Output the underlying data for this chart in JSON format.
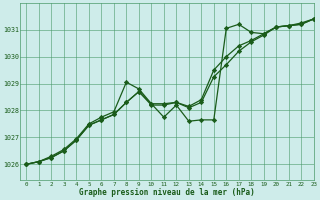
{
  "title": "Graphe pression niveau de la mer (hPa)",
  "bg_color": "#ceecea",
  "grid_color": "#4a9a6a",
  "line_color": "#1a5c1a",
  "marker_color": "#1a5c1a",
  "xlim": [
    -0.5,
    23
  ],
  "ylim": [
    1025.4,
    1032.0
  ],
  "yticks": [
    1026,
    1027,
    1028,
    1029,
    1030,
    1031
  ],
  "xticks": [
    0,
    1,
    2,
    3,
    4,
    5,
    6,
    7,
    8,
    9,
    10,
    11,
    12,
    13,
    14,
    15,
    16,
    17,
    18,
    19,
    20,
    21,
    22,
    23
  ],
  "series1_x": [
    0,
    1,
    2,
    3,
    4,
    5,
    6,
    7,
    8,
    9,
    10,
    11,
    12,
    13,
    14,
    15,
    16,
    17,
    18,
    19,
    20,
    21,
    22,
    23
  ],
  "series1_y": [
    1026.0,
    1026.1,
    1026.3,
    1026.55,
    1026.95,
    1027.5,
    1027.75,
    1027.95,
    1029.05,
    1028.8,
    1028.25,
    1027.75,
    1028.2,
    1027.6,
    1027.65,
    1027.65,
    1031.05,
    1031.2,
    1030.9,
    1030.85,
    1031.1,
    1031.15,
    1031.25,
    1031.4
  ],
  "series2_x": [
    0,
    1,
    2,
    3,
    4,
    5,
    6,
    7,
    8,
    9,
    10,
    11,
    12,
    13,
    14,
    15,
    16,
    17,
    18,
    19,
    20,
    21,
    22,
    23
  ],
  "series2_y": [
    1026.0,
    1026.1,
    1026.25,
    1026.5,
    1026.9,
    1027.45,
    1027.65,
    1027.85,
    1028.3,
    1028.7,
    1028.2,
    1028.2,
    1028.3,
    1028.1,
    1028.3,
    1029.25,
    1029.7,
    1030.2,
    1030.55,
    1030.8,
    1031.1,
    1031.15,
    1031.2,
    1031.4
  ],
  "series3_x": [
    0,
    1,
    2,
    3,
    4,
    5,
    6,
    7,
    8,
    9,
    10,
    11,
    12,
    13,
    14,
    15,
    16,
    17,
    18,
    19,
    20,
    21,
    22,
    23
  ],
  "series3_y": [
    1026.0,
    1026.1,
    1026.25,
    1026.5,
    1026.9,
    1027.45,
    1027.65,
    1027.85,
    1028.3,
    1028.7,
    1028.25,
    1028.25,
    1028.3,
    1028.15,
    1028.4,
    1029.5,
    1030.0,
    1030.4,
    1030.6,
    1030.85,
    1031.1,
    1031.15,
    1031.2,
    1031.4
  ]
}
